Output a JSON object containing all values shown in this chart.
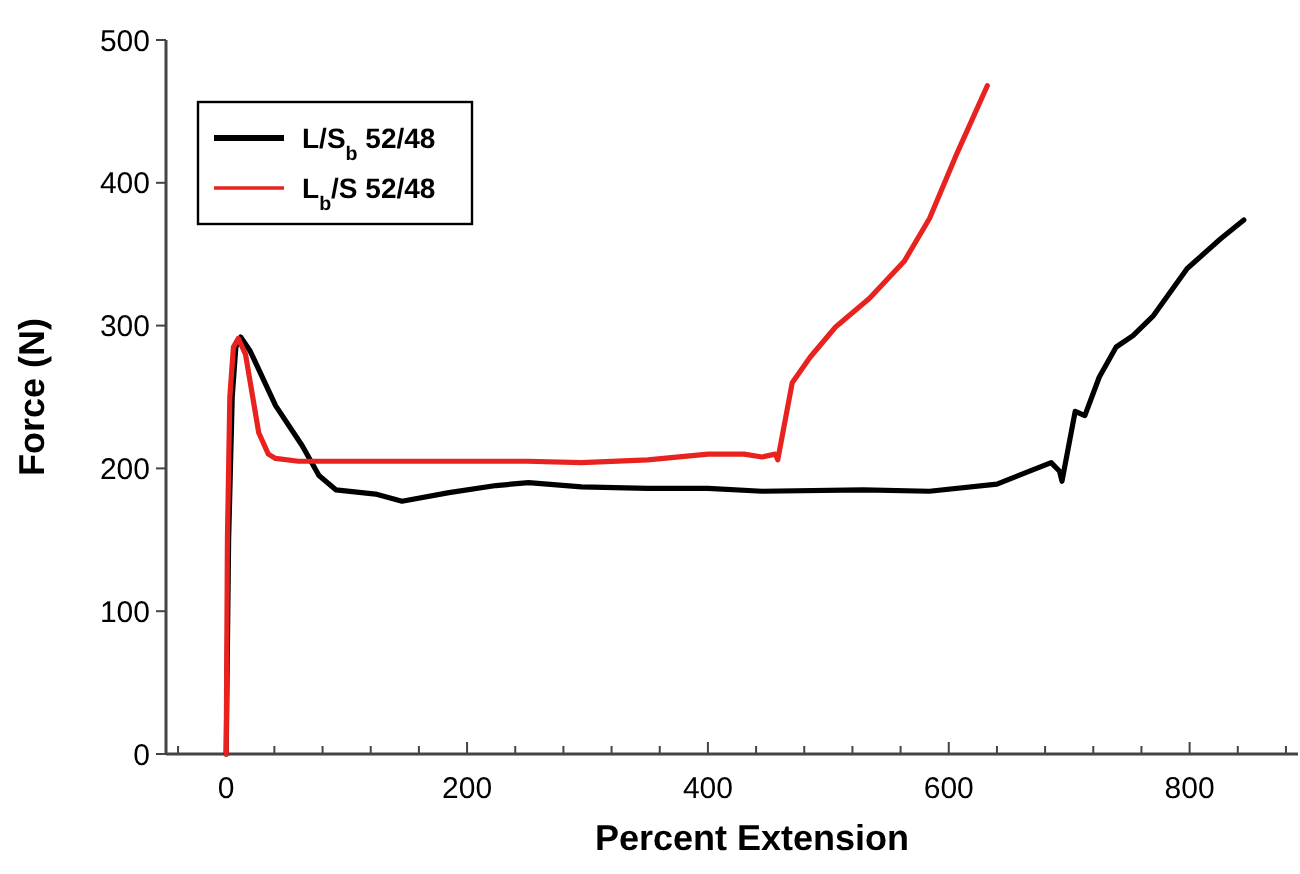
{
  "chart_data": {
    "type": "line",
    "xlabel": "Percent Extension",
    "ylabel": "Force (N)",
    "xlim": [
      -50,
      890
    ],
    "ylim": [
      0,
      500
    ],
    "xticks": [
      {
        "value": -40,
        "label": null
      },
      0,
      {
        "value": 40,
        "label": null
      },
      {
        "value": 80,
        "label": null
      },
      {
        "value": 120,
        "label": null
      },
      {
        "value": 160,
        "label": null
      },
      200,
      {
        "value": 240,
        "label": null
      },
      {
        "value": 280,
        "label": null
      },
      {
        "value": 320,
        "label": null
      },
      {
        "value": 360,
        "label": null
      },
      400,
      {
        "value": 440,
        "label": null
      },
      {
        "value": 480,
        "label": null
      },
      {
        "value": 520,
        "label": null
      },
      {
        "value": 560,
        "label": null
      },
      600,
      {
        "value": 640,
        "label": null
      },
      {
        "value": 680,
        "label": null
      },
      {
        "value": 720,
        "label": null
      },
      {
        "value": 760,
        "label": null
      },
      800,
      {
        "value": 840,
        "label": null
      },
      {
        "value": 880,
        "label": null
      }
    ],
    "yticks": [
      0,
      100,
      200,
      300,
      400,
      500
    ],
    "grid": false,
    "legend": "top left",
    "marker": "none",
    "line_style": "solid",
    "series": [
      {
        "name": "L/S$_{b}$ 52/48",
        "color": "#000000",
        "x": [
          0,
          2,
          5,
          8,
          12,
          20,
          41,
          63,
          77,
          91,
          124,
          146,
          185,
          224,
          251,
          295,
          350,
          400,
          445,
          529,
          584,
          640,
          685,
          692,
          694,
          705,
          713,
          725,
          739,
          753,
          770,
          798,
          826,
          845
        ],
        "values": [
          0,
          150,
          250,
          285,
          292,
          282,
          244,
          216,
          195,
          185,
          182,
          177,
          183,
          188,
          190,
          187,
          186,
          186,
          184,
          185,
          184,
          189,
          204,
          198,
          191,
          240,
          237,
          264,
          285,
          293,
          307,
          340,
          361,
          374
        ]
      },
      {
        "name": "L$_{b}$/S 52/48",
        "color": "#e8231f",
        "x": [
          0,
          1,
          3,
          6,
          10,
          16,
          22,
          27,
          35,
          41,
          60,
          100,
          150,
          200,
          250,
          295,
          350,
          400,
          430,
          445,
          456,
          458,
          470,
          485,
          506,
          534,
          563,
          584,
          607,
          632
        ],
        "values": [
          0,
          150,
          250,
          285,
          291,
          280,
          250,
          225,
          210,
          207,
          205,
          205,
          205,
          205,
          205,
          204,
          206,
          210,
          210,
          208,
          210,
          206,
          260,
          278,
          299,
          319,
          345,
          375,
          421,
          468
        ]
      }
    ]
  }
}
